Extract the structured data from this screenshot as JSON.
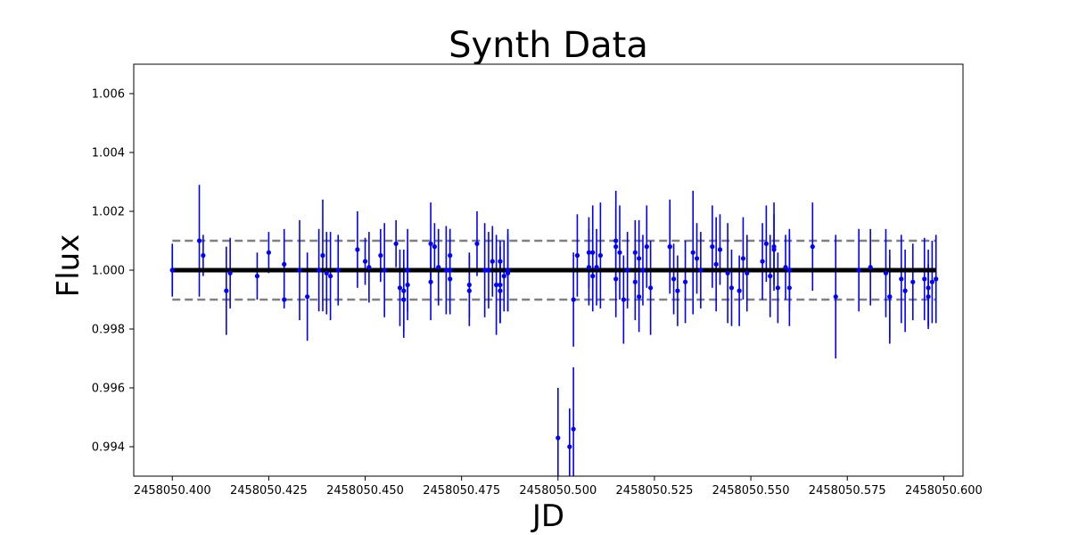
{
  "chart_data": {
    "type": "scatter",
    "title": "Synth Data",
    "xlabel": "JD",
    "ylabel": "Flux",
    "xlim": [
      2458050.39,
      2458050.605
    ],
    "ylim": [
      0.993,
      1.007
    ],
    "xticks": [
      2458050.4,
      2458050.425,
      2458050.45,
      2458050.475,
      2458050.5,
      2458050.525,
      2458050.55,
      2458050.575,
      2458050.6
    ],
    "xtick_labels": [
      "2458050.400",
      "2458050.425",
      "2458050.450",
      "2458050.475",
      "2458050.500",
      "2458050.525",
      "2458050.550",
      "2458050.575",
      "2458050.600"
    ],
    "yticks": [
      0.994,
      0.996,
      0.998,
      1.0,
      1.002,
      1.004,
      1.006
    ],
    "ytick_labels": [
      "0.994",
      "0.996",
      "0.998",
      "1.000",
      "1.002",
      "1.004",
      "1.006"
    ],
    "grid": false,
    "colors": {
      "points": "#0000ff",
      "model": "#000000",
      "bounds": "#808080"
    },
    "model_line": {
      "x": [
        2458050.4,
        2458050.598
      ],
      "y": [
        1.0,
        1.0
      ]
    },
    "upper_bound": {
      "x": [
        2458050.4,
        2458050.598
      ],
      "y": [
        1.001,
        1.001
      ]
    },
    "lower_bound": {
      "x": [
        2458050.4,
        2458050.598
      ],
      "y": [
        0.999,
        0.999
      ]
    },
    "series": [
      {
        "x": [
          2458050.4,
          2458050.4,
          2458050.407,
          2458050.408,
          2458050.414,
          2458050.415,
          2458050.422,
          2458050.425,
          2458050.429,
          2458050.429,
          2458050.433,
          2458050.435,
          2458050.438,
          2458050.439,
          2458050.44,
          2458050.441,
          2458050.443,
          2458050.448,
          2458050.45,
          2458050.451,
          2458050.454,
          2458050.455,
          2458050.458,
          2458050.459,
          2458050.46,
          2458050.46,
          2458050.461,
          2458050.461,
          2458050.467,
          2458050.467,
          2458050.468,
          2458050.469,
          2458050.471,
          2458050.472,
          2458050.472,
          2458050.472,
          2458050.477,
          2458050.477,
          2458050.479,
          2458050.481,
          2458050.482,
          2458050.483,
          2458050.484,
          2458050.485,
          2458050.485,
          2458050.485,
          2458050.486,
          2458050.487,
          2458050.487,
          2458050.5,
          2458050.503,
          2458050.504,
          2458050.504,
          2458050.505,
          2458050.508,
          2458050.508,
          2458050.509,
          2458050.509,
          2458050.51,
          2458050.511,
          2458050.515,
          2458050.515,
          2458050.515,
          2458050.516,
          2458050.517,
          2458050.518,
          2458050.52,
          2458050.52,
          2458050.521,
          2458050.521,
          2458050.522,
          2458050.523,
          2458050.524,
          2458050.529,
          2458050.529,
          2458050.53,
          2458050.531,
          2458050.533,
          2458050.535,
          2458050.536,
          2458050.537,
          2458050.54,
          2458050.541,
          2458050.542,
          2458050.544,
          2458050.545,
          2458050.547,
          2458050.548,
          2458050.549,
          2458050.553,
          2458050.554,
          2458050.555,
          2458050.556,
          2458050.556,
          2458050.557,
          2458050.559,
          2458050.56,
          2458050.56,
          2458050.56,
          2458050.566,
          2458050.572,
          2458050.578,
          2458050.581,
          2458050.585,
          2458050.586,
          2458050.586,
          2458050.589,
          2458050.59,
          2458050.592,
          2458050.595,
          2458050.596,
          2458050.596,
          2458050.597,
          2458050.598
        ],
        "y": [
          1.0,
          1.0,
          1.001,
          1.0005,
          0.9993,
          0.9999,
          0.9998,
          1.0006,
          1.0002,
          0.999,
          1.0,
          0.9991,
          1.0,
          1.0005,
          0.9999,
          0.9998,
          1.0,
          1.0007,
          1.0003,
          1.0001,
          1.0005,
          1.0,
          1.0009,
          0.9994,
          0.9993,
          0.999,
          1.0,
          0.9995,
          1.0009,
          0.9996,
          1.0008,
          1.0001,
          1.0,
          1.0005,
          0.9997,
          1.0,
          0.9995,
          0.9993,
          1.0009,
          1.0,
          1.0,
          1.0003,
          0.9995,
          1.0003,
          0.9995,
          0.9993,
          0.9998,
          0.9999,
          1.0,
          0.9943,
          0.994,
          0.9946,
          0.999,
          1.0005,
          1.0006,
          1.0001,
          0.9998,
          1.0006,
          1.0001,
          1.0005,
          1.0008,
          1.001,
          0.9997,
          1.0006,
          0.999,
          1.0,
          1.0006,
          0.9996,
          1.0004,
          0.9991,
          1.0,
          1.0008,
          0.9994,
          1.0008,
          1.0008,
          0.9997,
          0.9993,
          0.9996,
          1.0006,
          1.0004,
          1.0,
          1.0008,
          1.0002,
          1.0007,
          0.9999,
          0.9994,
          0.9993,
          1.0004,
          0.9999,
          1.0003,
          1.0009,
          0.9998,
          1.0008,
          1.0007,
          0.9994,
          1.0001,
          1.0,
          1.0,
          0.9994,
          1.0008,
          0.9991,
          1.0,
          1.0001,
          0.9999,
          0.9991,
          0.9991,
          0.9997,
          0.9993,
          0.9996,
          0.9997,
          0.9991,
          0.9994,
          0.9996,
          0.9997
        ],
        "yerr": [
          0.0008,
          0.0009,
          0.0019,
          0.0007,
          0.0015,
          0.0012,
          0.0008,
          0.0007,
          0.0012,
          0.0003,
          0.0017,
          0.0015,
          0.0014,
          0.0019,
          0.0014,
          0.0015,
          0.0012,
          0.0013,
          0.0008,
          0.0012,
          0.0009,
          0.0016,
          0.0008,
          0.0013,
          0.0014,
          0.0013,
          0.0014,
          0.0012,
          0.0014,
          0.0013,
          0.0008,
          0.0013,
          0.0015,
          0.0009,
          0.0012,
          0.0014,
          0.0011,
          0.0012,
          0.0011,
          0.0016,
          0.0013,
          0.0012,
          0.0017,
          0.0007,
          0.0013,
          0.0011,
          0.0012,
          0.0013,
          0.0014,
          0.0017,
          0.0013,
          0.0021,
          0.0016,
          0.0014,
          0.0012,
          0.0013,
          0.0012,
          0.0016,
          0.0013,
          0.0018,
          0.0013,
          0.0017,
          0.0013,
          0.0016,
          0.0015,
          0.0013,
          0.0011,
          0.0013,
          0.0013,
          0.0012,
          0.0012,
          0.0014,
          0.0016,
          0.0016,
          0.0014,
          0.0012,
          0.0012,
          0.0014,
          0.0021,
          0.0012,
          0.0013,
          0.0014,
          0.0016,
          0.0012,
          0.0017,
          0.0013,
          0.0012,
          0.0014,
          0.0013,
          0.0013,
          0.0013,
          0.0014,
          0.0015,
          0.0012,
          0.0012,
          0.0011,
          0.0012,
          0.0014,
          0.0013,
          0.0015,
          0.0021,
          0.0014,
          0.0013,
          0.0015,
          0.0014,
          0.0016,
          0.0015,
          0.0014,
          0.0013,
          0.0014,
          0.0011,
          0.0013,
          0.0014,
          0.0015
        ]
      }
    ]
  }
}
